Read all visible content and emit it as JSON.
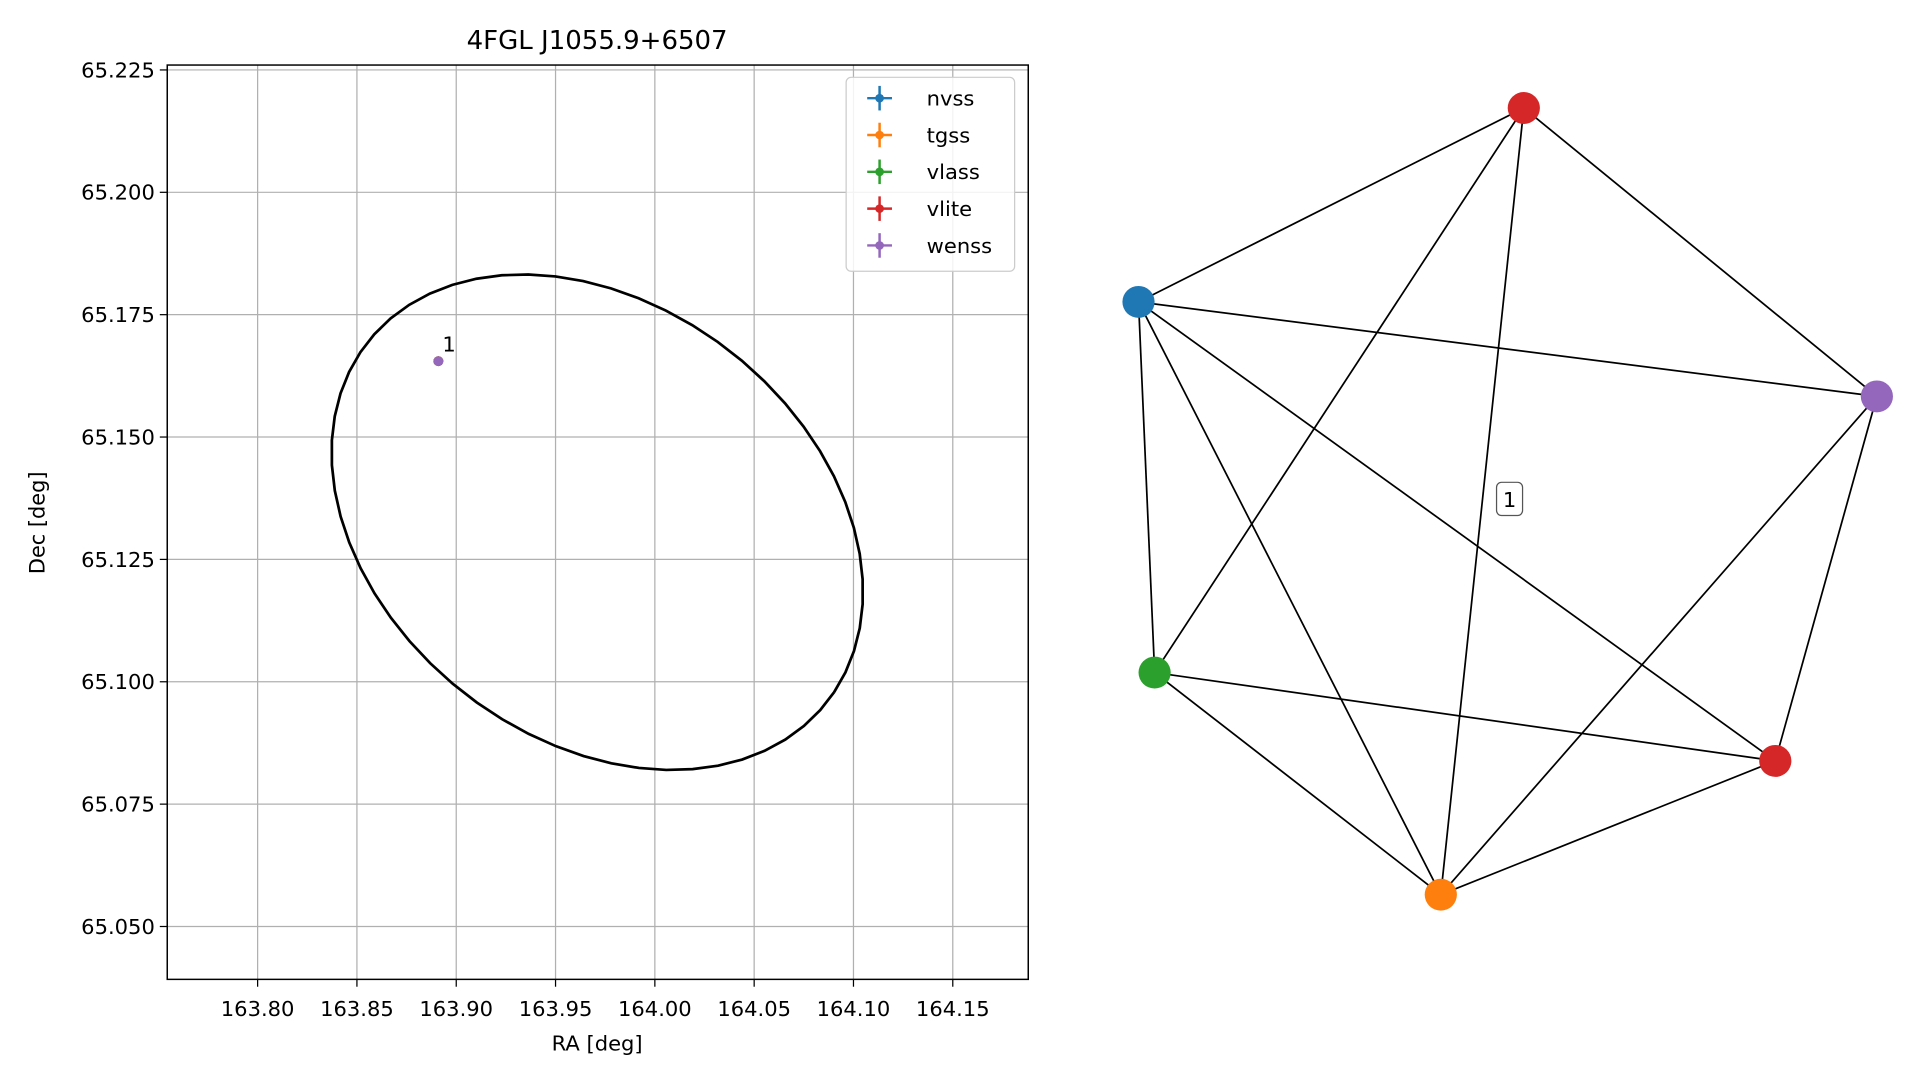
{
  "chart_data": [
    {
      "type": "scatter",
      "title": "4FGL J1055.9+6507",
      "x_label": "RA [deg]",
      "y_label": "Dec [deg]",
      "xlim": [
        163.7545,
        164.188
      ],
      "ylim": [
        65.0392,
        65.226
      ],
      "xticks": [
        {
          "value": 163.8,
          "label": "163.80"
        },
        163.85,
        {
          "value": 163.9,
          "label": "163.90"
        },
        163.95,
        {
          "value": 164.0,
          "label": "164.00"
        },
        164.05,
        {
          "value": 164.1,
          "label": "164.10"
        },
        164.15
      ],
      "yticks": [
        {
          "value": 65.05,
          "label": "65.050"
        },
        65.075,
        {
          "value": 65.1,
          "label": "65.100"
        },
        65.125,
        {
          "value": 65.15,
          "label": "65.150"
        },
        65.175,
        {
          "value": 65.2,
          "label": "65.200"
        },
        65.225
      ],
      "grid": true,
      "legend": "upper right",
      "series": [
        {
          "name": "nvss",
          "color": "#1f77b4",
          "x": [
            163.891
          ],
          "values": [
            65.1655
          ]
        },
        {
          "name": "tgss",
          "color": "#ff7f0e",
          "x": [
            163.891
          ],
          "values": [
            65.1655
          ]
        },
        {
          "name": "vlass",
          "color": "#2ca02c",
          "x": [
            163.891
          ],
          "values": [
            65.1655
          ]
        },
        {
          "name": "vlite",
          "color": "#d62728",
          "x": [
            163.891
          ],
          "values": [
            65.1655
          ]
        },
        {
          "name": "wenss",
          "color": "#9467bd",
          "x": [
            163.891
          ],
          "values": [
            65.1655
          ]
        }
      ],
      "annotation": {
        "text": "1",
        "x": 163.893,
        "y": 65.1675
      },
      "ellipse": {
        "ra": 163.971,
        "dec": 65.1326,
        "semi_major": 0.061,
        "semi_minor": 0.0448,
        "angle": -34.7,
        "color": "#000000"
      }
    },
    {
      "type": "network",
      "label": "1",
      "nodes": [
        {
          "color": "#1f77b4"
        },
        {
          "color": "#d62728"
        },
        {
          "color": "#9467bd"
        },
        {
          "color": "#d62728"
        },
        {
          "color": "#ff7f0e"
        },
        {
          "color": "#2ca02c"
        }
      ],
      "edges": [
        [
          0,
          1
        ],
        [
          0,
          2
        ],
        [
          0,
          3
        ],
        [
          0,
          4
        ],
        [
          0,
          5
        ],
        [
          1,
          2
        ],
        [
          1,
          4
        ],
        [
          1,
          5
        ],
        [
          2,
          3
        ],
        [
          2,
          4
        ],
        [
          3,
          4
        ],
        [
          3,
          5
        ],
        [
          4,
          5
        ]
      ]
    }
  ]
}
